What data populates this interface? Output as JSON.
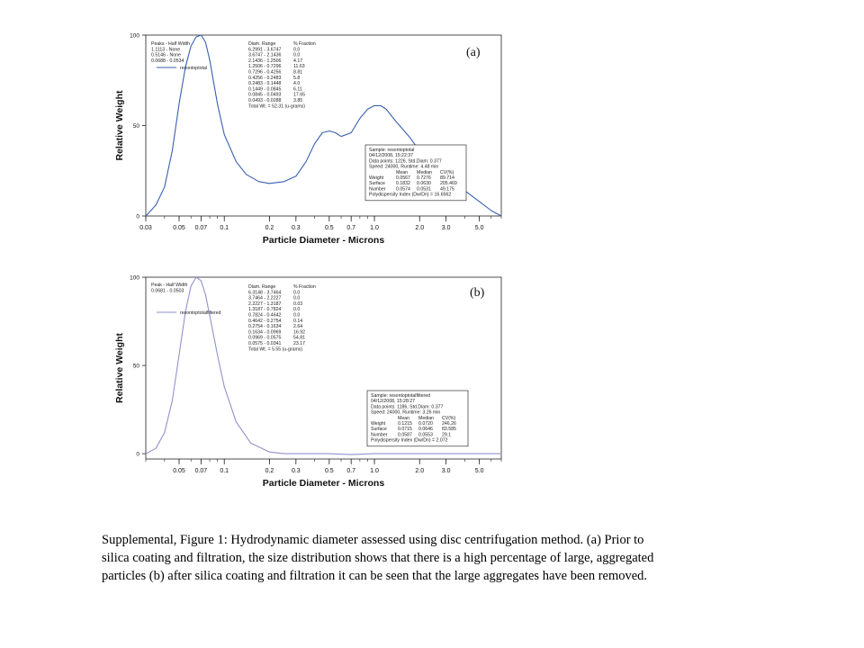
{
  "caption": {
    "lines": [
      "Supplemental, Figure 1: Hydrodynamic diameter assessed using disc centrifugation method. (a) Prior to",
      "silica coating and filtration, the size distribution shows that there is a high percentage of large, aggregated",
      "particles (b) after silica coating and filtration it can be seen that the large aggregates have been removed."
    ]
  },
  "colors": {
    "line_a": "#3a5fb0",
    "line_b": "#8f93cc",
    "axis": "#222222"
  },
  "chart_data": [
    {
      "type": "line",
      "panel_label": "(a)",
      "xlabel": "Particle Diameter  -  Microns",
      "ylabel": "Relative Weight",
      "x_scale": "log",
      "xlim": [
        0.03,
        7.0
      ],
      "ylim": [
        0,
        100
      ],
      "x_ticks": [
        "0.03",
        "0.05",
        "0.07",
        "0.1",
        "0.2",
        "0.3",
        "0.5",
        "0.7",
        "1.0",
        "2.0",
        "3.0",
        "5.0"
      ],
      "y_ticks": [
        "0",
        "50",
        "100"
      ],
      "legend": "resontoptotal",
      "series": [
        {
          "name": "resontoptotal",
          "x": [
            0.03,
            0.035,
            0.04,
            0.045,
            0.05,
            0.055,
            0.06,
            0.065,
            0.07,
            0.075,
            0.08,
            0.09,
            0.1,
            0.12,
            0.14,
            0.17,
            0.2,
            0.25,
            0.3,
            0.35,
            0.4,
            0.45,
            0.5,
            0.55,
            0.6,
            0.7,
            0.8,
            0.9,
            1.0,
            1.1,
            1.2,
            1.4,
            1.7,
            2.0,
            2.5,
            3.0,
            4.0,
            5.0,
            6.0,
            7.0
          ],
          "y": [
            0,
            6,
            16,
            36,
            62,
            82,
            94,
            99,
            100,
            96,
            86,
            62,
            45,
            30,
            23,
            19,
            18,
            19,
            22,
            30,
            40,
            46,
            47,
            46,
            44,
            46,
            54,
            59,
            61,
            61,
            59,
            52,
            44,
            36,
            28,
            22,
            14,
            8,
            3,
            0
          ]
        }
      ],
      "peaks_table": {
        "header": [
          "Peaks",
          "-",
          "Half Width"
        ],
        "rows": [
          [
            "1.1113",
            "-",
            "None"
          ],
          [
            "0.5146",
            "-",
            "None"
          ],
          [
            "0.0688",
            "-",
            "0.0534"
          ]
        ]
      },
      "range_table": {
        "header": [
          "Diam. Range",
          "% Fraction"
        ],
        "rows": [
          [
            "6.2991 - 3.6747",
            "0.0"
          ],
          [
            "3.6747 - 2.1436",
            "0.0"
          ],
          [
            "2.1436 - 1.2506",
            "4.17"
          ],
          [
            "1.2506 - 0.7296",
            "11.63"
          ],
          [
            "0.7296 - 0.4256",
            "8.81"
          ],
          [
            "0.4256 - 0.2483",
            "5.8"
          ],
          [
            "0.2483 - 0.1448",
            "4.0"
          ],
          [
            "0.1449 - 0.0845",
            "6.11"
          ],
          [
            "0.0845 - 0.0493",
            "17.65"
          ],
          [
            "0.0493 - 0.0288",
            "3.85"
          ]
        ],
        "total": "Total Wt. = 52.31 (u-grams)"
      },
      "stats_box": {
        "lines": [
          "Sample: resontoptotal",
          "04/12/2008,   15:22:37",
          "Data points: 1226,  Std.Diam: 0.377",
          "Speed: 24000,  Runtime: 4.48 min"
        ],
        "columns": [
          "",
          "Mean",
          "Median",
          "CV(%)"
        ],
        "rows": [
          [
            "Weight",
            "0.0567",
            "0.7276",
            "89.714"
          ],
          [
            "Surface",
            "0.1832",
            "0.0630",
            "205.469"
          ],
          [
            "Number",
            "0.0574",
            "0.0531",
            "49.175"
          ]
        ],
        "footer": "Polydispersity Index (Dw/Dn) = 16.6562"
      }
    },
    {
      "type": "line",
      "panel_label": "(b)",
      "xlabel": "Particle Diameter  -  Microns",
      "ylabel": "Relative Weight",
      "x_scale": "log",
      "xlim": [
        0.03,
        7.0
      ],
      "ylim": [
        -3,
        100
      ],
      "x_ticks": [
        "0.05",
        "0.07",
        "0.1",
        "0.2",
        "0.3",
        "0.5",
        "0.7",
        "1.0",
        "2.0",
        "3.0",
        "5.0"
      ],
      "y_ticks": [
        "0",
        "50",
        "100"
      ],
      "legend": "resontoptotalfiltered",
      "series": [
        {
          "name": "resontoptotalfiltered",
          "x": [
            0.03,
            0.035,
            0.04,
            0.045,
            0.05,
            0.055,
            0.06,
            0.065,
            0.07,
            0.075,
            0.08,
            0.09,
            0.1,
            0.12,
            0.15,
            0.2,
            0.25,
            0.3,
            0.4,
            0.5,
            0.7,
            1.0,
            2.0,
            3.0,
            5.0,
            7.0
          ],
          "y": [
            0,
            3,
            12,
            30,
            56,
            80,
            95,
            100,
            98,
            90,
            78,
            56,
            38,
            18,
            6,
            1,
            0,
            0,
            0,
            0,
            -0.5,
            0,
            0,
            0,
            0,
            0
          ]
        }
      ],
      "peaks_table": {
        "header": [
          "Peak",
          "-",
          "Half Width"
        ],
        "rows": [
          [
            "0.0681",
            "-",
            "0.0503"
          ]
        ]
      },
      "range_table": {
        "header": [
          "Diam. Range",
          "% Fraction"
        ],
        "rows": [
          [
            "6.3148 - 3.7464",
            "0.0"
          ],
          [
            "3.7464 - 2.2227",
            "0.0"
          ],
          [
            "2.2227 - 1.3187",
            "0.03"
          ],
          [
            "1.3187 - 0.7824",
            "0.0"
          ],
          [
            "0.7824 - 0.4642",
            "0.0"
          ],
          [
            "0.4642 - 0.2754",
            "0.14"
          ],
          [
            "0.2754 - 0.1634",
            "2.64"
          ],
          [
            "0.1634 - 0.0969",
            "16.92"
          ],
          [
            "0.0969 - 0.0575",
            "54.81"
          ],
          [
            "0.0575 - 0.0341",
            "23.17"
          ]
        ],
        "total": "Total Wt. = 5.55 (u-grams)"
      },
      "stats_box": {
        "lines": [
          "Sample: resontoptotalfiltered",
          "04/12/2008,   15:28:27",
          "Data points: 1186,  Std.Diam: 0.377",
          "Speed: 24000,  Runtime: 3.26 min"
        ],
        "columns": [
          "",
          "Mean",
          "Median",
          "CV(%)"
        ],
        "rows": [
          [
            "Weight",
            "0.1215",
            "0.0720",
            "246.26"
          ],
          [
            "Surface",
            "0.0715",
            "0.0646",
            "83.585"
          ],
          [
            "Number",
            "0.0587",
            "0.0553",
            "29.1"
          ]
        ],
        "footer": "Polydispersity Index (Dw/Dn) = 2.072"
      }
    }
  ]
}
